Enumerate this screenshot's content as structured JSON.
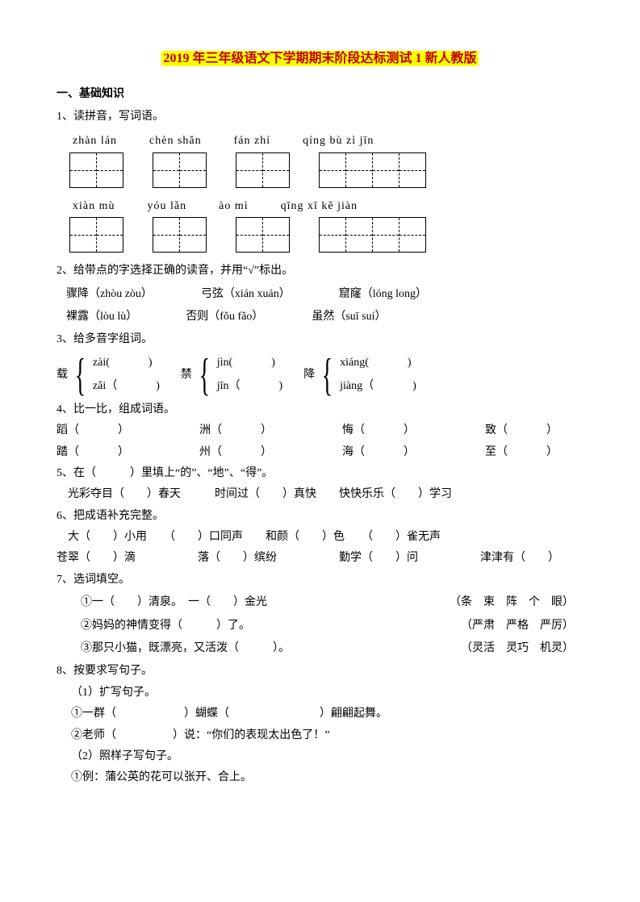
{
  "title": {
    "highlight": "2019 年三年级语文下学期期末阶段达标测试 1 新人教版"
  },
  "s1": {
    "head": "一、基础知识",
    "q1": "1、读拼音，写词语。",
    "row1": {
      "p1": "zhàn  lán",
      "p2": "chèn  shǎn",
      "p3": "fán  zhí",
      "p4": "qíng  bù  zì  jīn"
    },
    "row2": {
      "p1": "xiàn  mù",
      "p2": "yóu  lǎn",
      "p3": "ào  mì",
      "p4": "qīng  xī  kě  jiàn"
    },
    "q2": "2、给带点的字选择正确的读音，并用“√”标出。",
    "q2a": "骤降（zhòu  zòu）",
    "q2b": "弓弦（xián  xuán）",
    "q2c": "窟窿（lóng  long）",
    "q2d": "裸露（lòu  lù）",
    "q2e": "否则（fǒu  fǎo）",
    "q2f": "虽然（suī  suí）",
    "q3": "3、给多音字组词。",
    "d1": {
      "char": "载",
      "r1": "zài(",
      "r2": "zǎi（"
    },
    "d2": {
      "char": "禁",
      "r1": "jìn(",
      "r2": "jīn（"
    },
    "d3": {
      "char": "降",
      "r1": "xiáng(",
      "r2": "jiàng（"
    },
    "q4": "4、比一比，组成词语。",
    "q4r1": {
      "a": "蹈（",
      "b": "洲（",
      "c": "悔（",
      "d": "致（"
    },
    "q4r2": {
      "a": "踏（",
      "b": "州（",
      "c": "海（",
      "d": "至（"
    },
    "q5a": "5、在（　　　）里填上“的”、“地”、“得”。",
    "q5b": "　光彩夺目（　　）春天　　　时间过（　　）真快　　快快乐乐（　　）学习",
    "q6": "6、把成语补充完整。",
    "q6r1": "　大（　　）小用　　（　　）口同声　　和颜（　　）色　　（　　）雀无声",
    "q6r2a": "苍翠（　　）滴",
    "q6r2b": "落（　　）缤纷",
    "q6r2c": "勤学（　　）问",
    "q6r2d": "津津有（　　）",
    "q7": "7、选词填空。",
    "q7a": {
      "text": "①一（　　）清泉。　一（　　）金光",
      "opts": "（条　束　阵　个　眼）"
    },
    "q7b": {
      "text": "②妈妈的神情变得（　　　）了。",
      "opts": "（严肃　严格　严厉）"
    },
    "q7c": {
      "text": "③那只小猫，既漂亮，又活泼（　　　）。",
      "opts": "（灵活　灵巧　机灵）"
    },
    "q8": "8、按要求写句子。",
    "q8_1": "（1）扩写句子。",
    "q8_1a": "①一群（　　　　　　）蝴蝶（　　　　　　　　）翩翩起舞。",
    "q8_1b": "②老师（　　　　　）说：“你们的表现太出色了！”",
    "q8_2": "（2）照样子写句子。",
    "q8_2a": "①例：蒲公英的花可以张开、合上。"
  },
  "colors": {
    "highlight_bg": "#ffff00",
    "highlight_fg": "#c00000",
    "text": "#000000",
    "bg": "#ffffff"
  }
}
